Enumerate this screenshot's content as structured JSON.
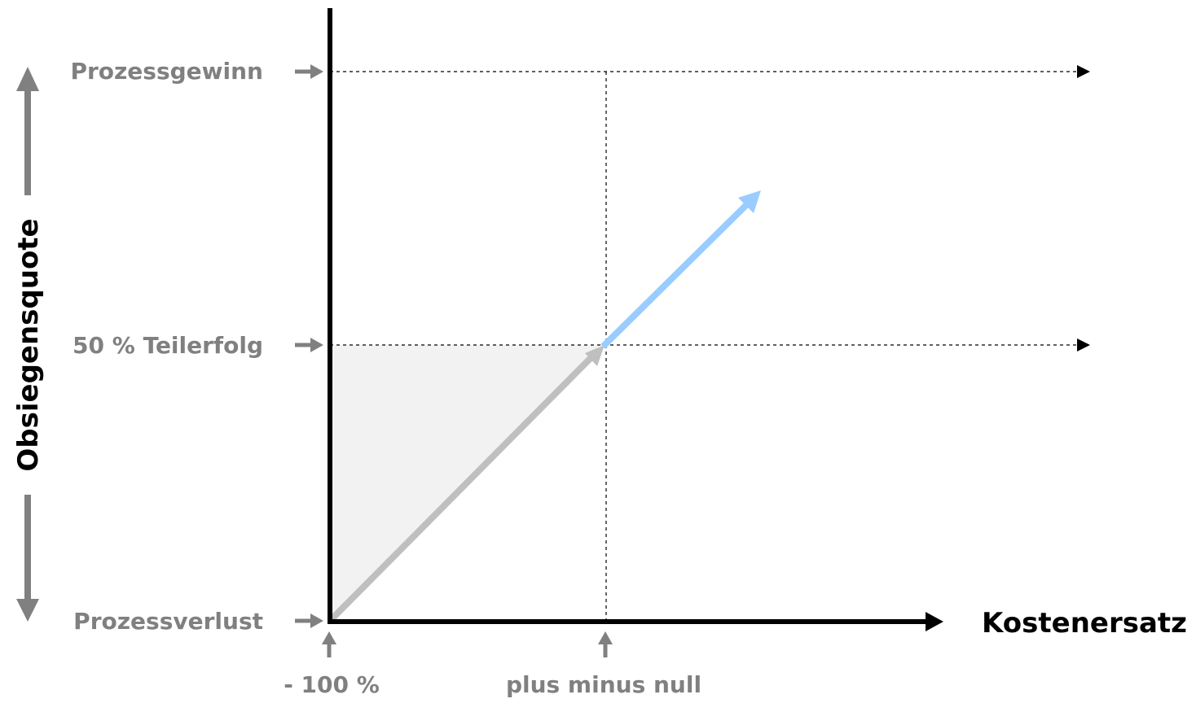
{
  "diagram": {
    "y_axis": {
      "title": "Obsiegensquote",
      "levels": [
        {
          "label": "Prozessgewinn"
        },
        {
          "label": "50 % Teilerfolg"
        },
        {
          "label": "Prozessverlust"
        }
      ]
    },
    "x_axis": {
      "title": "Kostenersatz",
      "points": [
        {
          "label": "- 100 %"
        },
        {
          "label": "plus minus null"
        }
      ]
    },
    "colors": {
      "axis": "#000000",
      "label": "#808080",
      "grey_arrow": "#bfbfbf",
      "blue_arrow": "#99ccff",
      "shaded_region": "#f2f2f2",
      "guide_lines": "#000000"
    }
  }
}
